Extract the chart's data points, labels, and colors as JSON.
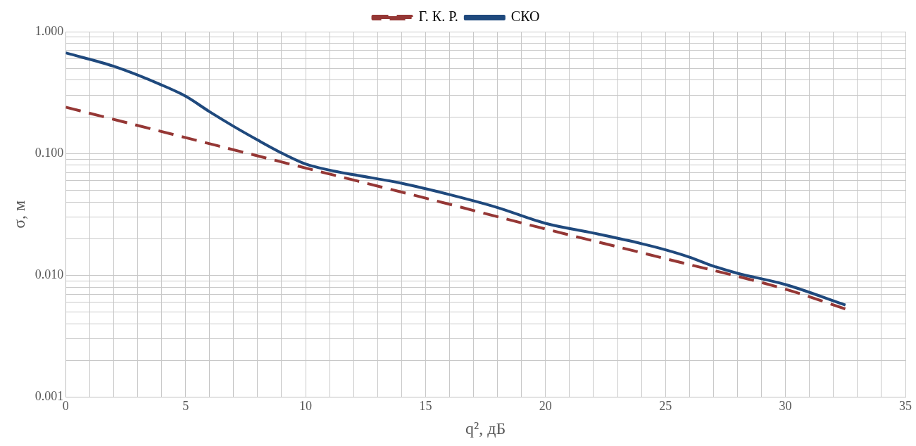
{
  "chart_data": {
    "type": "line",
    "xlabel": "q², дБ",
    "ylabel": "σ, м",
    "log": "y",
    "grid": true,
    "legend": "top",
    "marker": "none",
    "xlim": [
      0,
      35
    ],
    "xticks": [
      0,
      {
        "value": 1,
        "label": null
      },
      {
        "value": 2,
        "label": null
      },
      {
        "value": 3,
        "label": null
      },
      {
        "value": 4,
        "label": null
      },
      5,
      {
        "value": 6,
        "label": null
      },
      {
        "value": 7,
        "label": null
      },
      {
        "value": 8,
        "label": null
      },
      {
        "value": 9,
        "label": null
      },
      10,
      {
        "value": 11,
        "label": null
      },
      {
        "value": 12,
        "label": null
      },
      {
        "value": 13,
        "label": null
      },
      {
        "value": 14,
        "label": null
      },
      15,
      {
        "value": 16,
        "label": null
      },
      {
        "value": 17,
        "label": null
      },
      {
        "value": 18,
        "label": null
      },
      {
        "value": 19,
        "label": null
      },
      20,
      {
        "value": 21,
        "label": null
      },
      {
        "value": 22,
        "label": null
      },
      {
        "value": 23,
        "label": null
      },
      {
        "value": 24,
        "label": null
      },
      25,
      {
        "value": 26,
        "label": null
      },
      {
        "value": 27,
        "label": null
      },
      {
        "value": 28,
        "label": null
      },
      {
        "value": 29,
        "label": null
      },
      30,
      {
        "value": 31,
        "label": null
      },
      {
        "value": 32,
        "label": null
      },
      {
        "value": 33,
        "label": null
      },
      {
        "value": 34,
        "label": null
      },
      35
    ],
    "ylim": [
      0.001,
      1
    ],
    "yticks": [
      {
        "value": 0.001,
        "label": "0.001"
      },
      {
        "value": 0.002,
        "label": null
      },
      {
        "value": 0.003,
        "label": null
      },
      {
        "value": 0.004,
        "label": null
      },
      {
        "value": 0.005,
        "label": null
      },
      {
        "value": 0.006,
        "label": null
      },
      {
        "value": 0.007,
        "label": null
      },
      {
        "value": 0.008,
        "label": null
      },
      {
        "value": 0.009,
        "label": null
      },
      {
        "value": 0.01,
        "label": "0.010"
      },
      {
        "value": 0.02,
        "label": null
      },
      {
        "value": 0.03,
        "label": null
      },
      {
        "value": 0.04,
        "label": null
      },
      {
        "value": 0.05,
        "label": null
      },
      {
        "value": 0.06,
        "label": null
      },
      {
        "value": 0.07,
        "label": null
      },
      {
        "value": 0.08,
        "label": null
      },
      {
        "value": 0.09,
        "label": null
      },
      {
        "value": 0.1,
        "label": "0.100"
      },
      {
        "value": 0.2,
        "label": null
      },
      {
        "value": 0.3,
        "label": null
      },
      {
        "value": 0.4,
        "label": null
      },
      {
        "value": 0.5,
        "label": null
      },
      {
        "value": 0.6,
        "label": null
      },
      {
        "value": 0.7,
        "label": null
      },
      {
        "value": 0.8,
        "label": null
      },
      {
        "value": 0.9,
        "label": null
      },
      {
        "value": 1,
        "label": "1.000"
      }
    ],
    "series": [
      {
        "name": "Г. К. Р.",
        "color": "#953735",
        "line_style": "dashed",
        "x": [
          0,
          5,
          10,
          15,
          20,
          25,
          30,
          32.5
        ],
        "values": [
          0.24,
          0.135,
          0.076,
          0.043,
          0.024,
          0.0137,
          0.0077,
          0.0053
        ]
      },
      {
        "name": "СКО",
        "color": "#1f497d",
        "line_style": "solid",
        "x": [
          0,
          2,
          4,
          5,
          6,
          7,
          8,
          9,
          10,
          11,
          12,
          14,
          16,
          18,
          20,
          22,
          24,
          25,
          26,
          27,
          28,
          30,
          32.5
        ],
        "values": [
          0.67,
          0.52,
          0.365,
          0.295,
          0.22,
          0.167,
          0.129,
          0.101,
          0.082,
          0.073,
          0.067,
          0.057,
          0.046,
          0.036,
          0.0267,
          0.0222,
          0.0182,
          0.0162,
          0.0141,
          0.0119,
          0.0104,
          0.0084,
          0.0057
        ]
      }
    ]
  }
}
